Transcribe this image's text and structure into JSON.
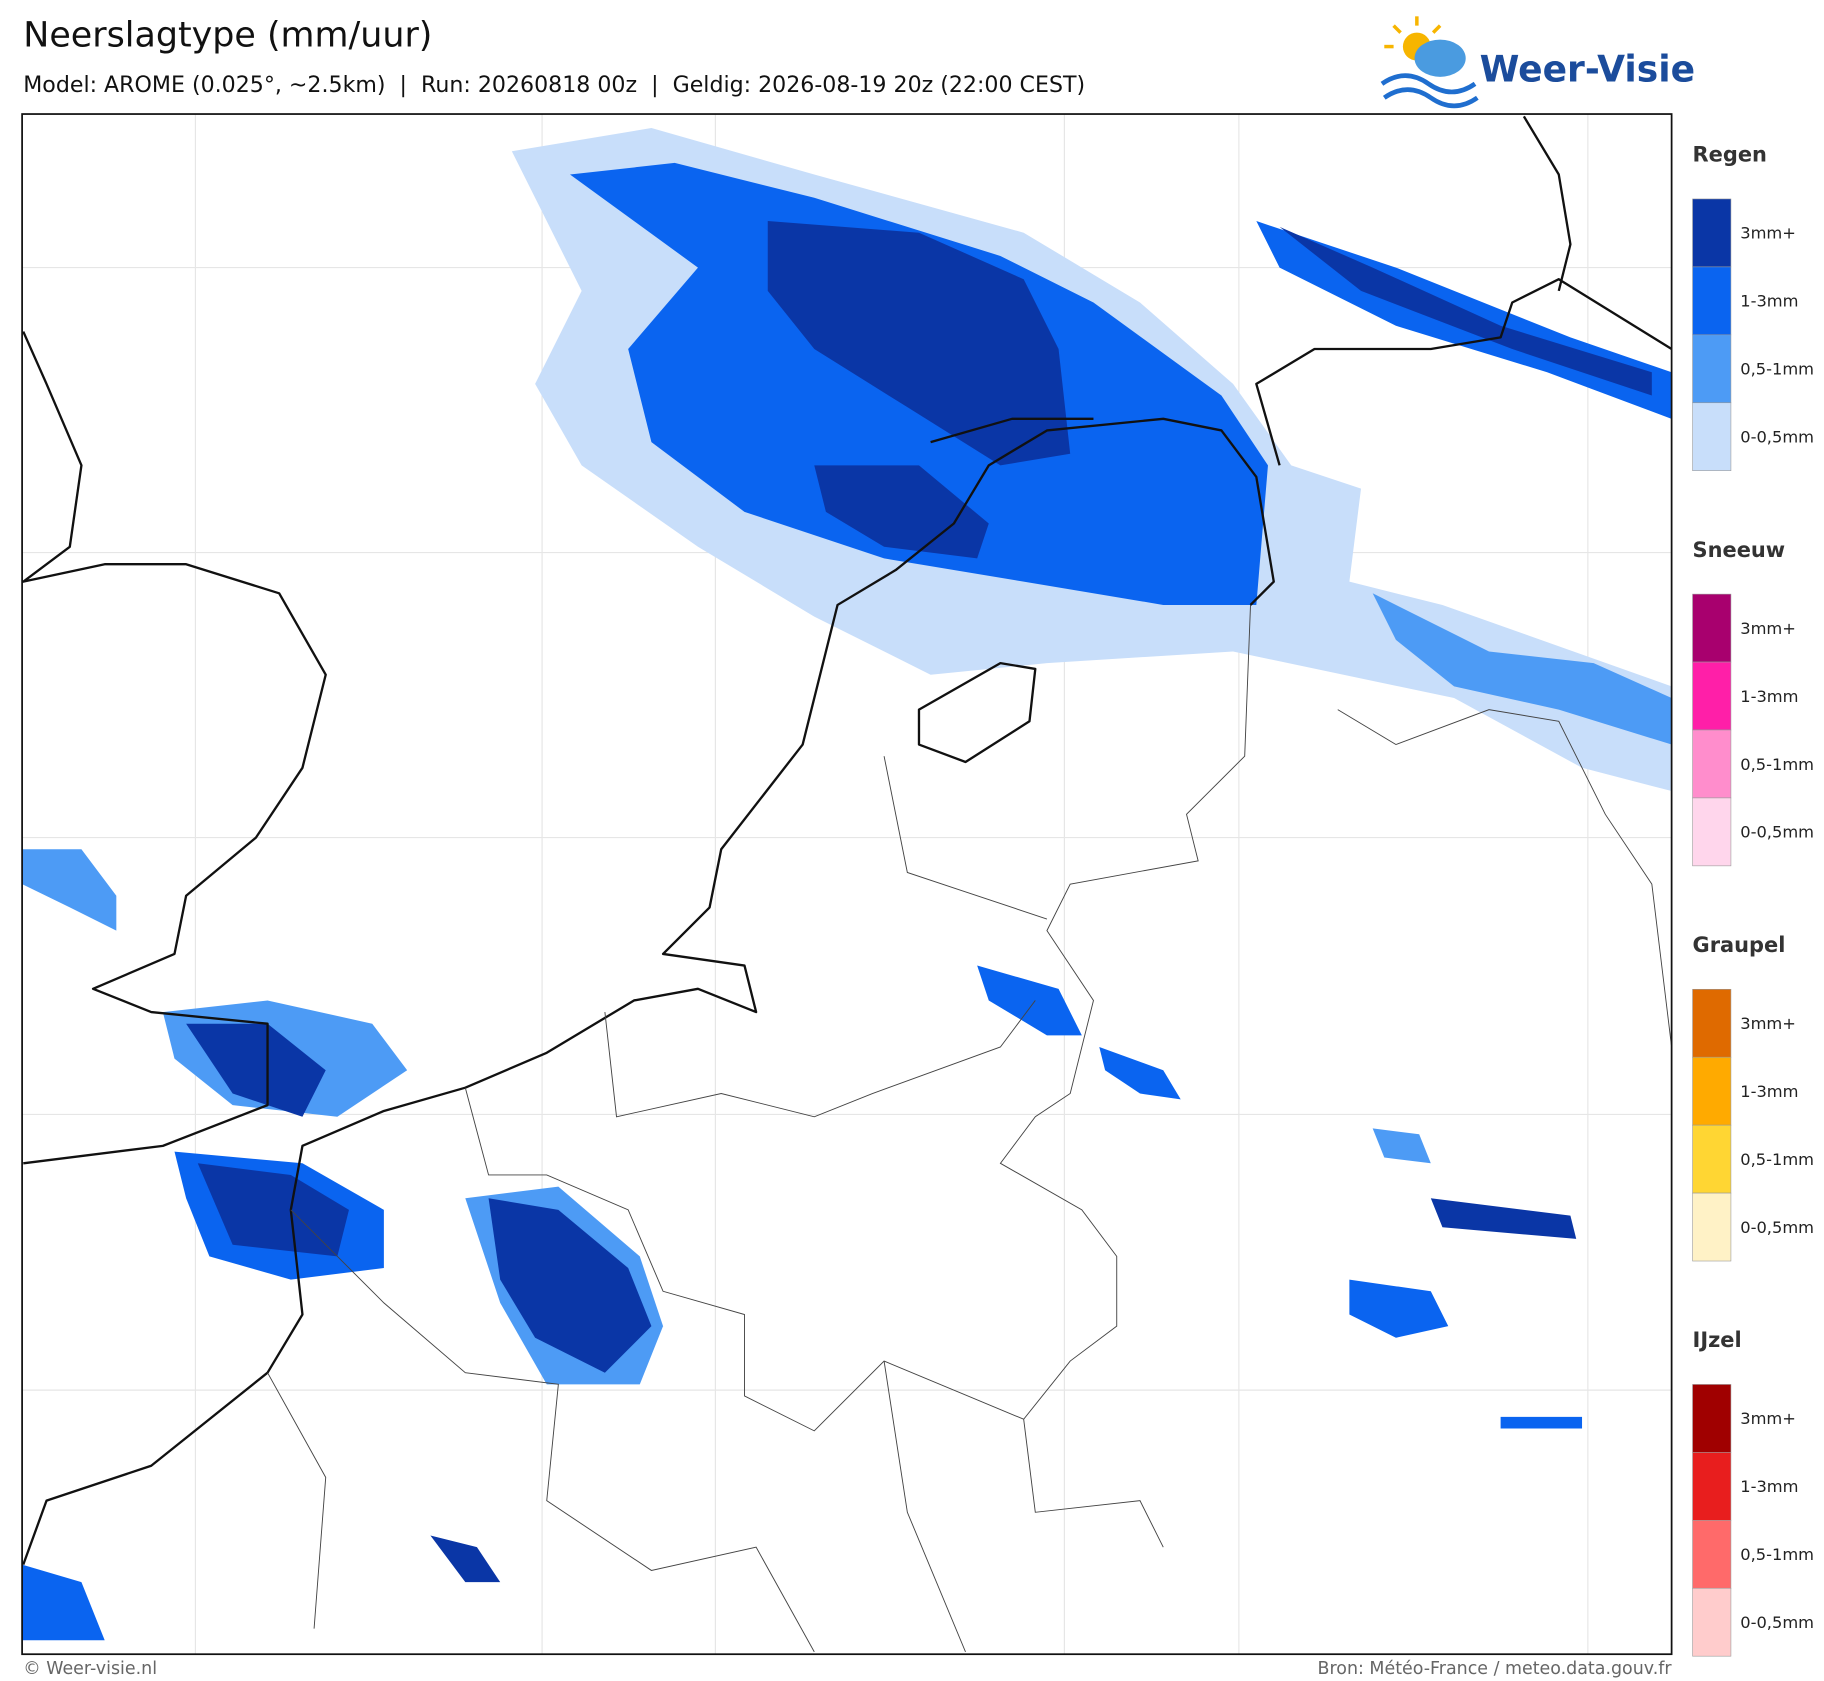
{
  "header": {
    "title": "Neerslagtype (mm/uur)",
    "subtitle": "Model: AROME (0.025°, ~2.5km)  |  Run: 20260818 00z  |  Geldig: 2026-08-19 20z (22:00 CEST)",
    "logo": "Weer-Visie"
  },
  "legend": [
    {
      "title": "Regen",
      "items": [
        {
          "label": "3mm+",
          "color": "#0a36a6"
        },
        {
          "label": "1-3mm",
          "color": "#0a64f0"
        },
        {
          "label": "0,5-1mm",
          "color": "#4d9bf5"
        },
        {
          "label": "0-0,5mm",
          "color": "#c8defa"
        }
      ]
    },
    {
      "title": "Sneeuw",
      "items": [
        {
          "label": "3mm+",
          "color": "#a8006e"
        },
        {
          "label": "1-3mm",
          "color": "#ff1fa8"
        },
        {
          "label": "0,5-1mm",
          "color": "#ff8dcc"
        },
        {
          "label": "0-0,5mm",
          "color": "#ffd6ec"
        }
      ]
    },
    {
      "title": "Graupel",
      "items": [
        {
          "label": "3mm+",
          "color": "#df6a00"
        },
        {
          "label": "1-3mm",
          "color": "#ffaa00"
        },
        {
          "label": "0,5-1mm",
          "color": "#ffd633"
        },
        {
          "label": "0-0,5mm",
          "color": "#fff2c6"
        }
      ]
    },
    {
      "title": "IJzel",
      "items": [
        {
          "label": "3mm+",
          "color": "#a00000"
        },
        {
          "label": "1-3mm",
          "color": "#e81e1e"
        },
        {
          "label": "0,5-1mm",
          "color": "#ff6a6a"
        },
        {
          "label": "0-0,5mm",
          "color": "#ffcccc"
        }
      ]
    }
  ],
  "footer": {
    "left": "© Weer-visie.nl",
    "right": "Bron: Météo-France / meteo.data.gouv.fr"
  }
}
